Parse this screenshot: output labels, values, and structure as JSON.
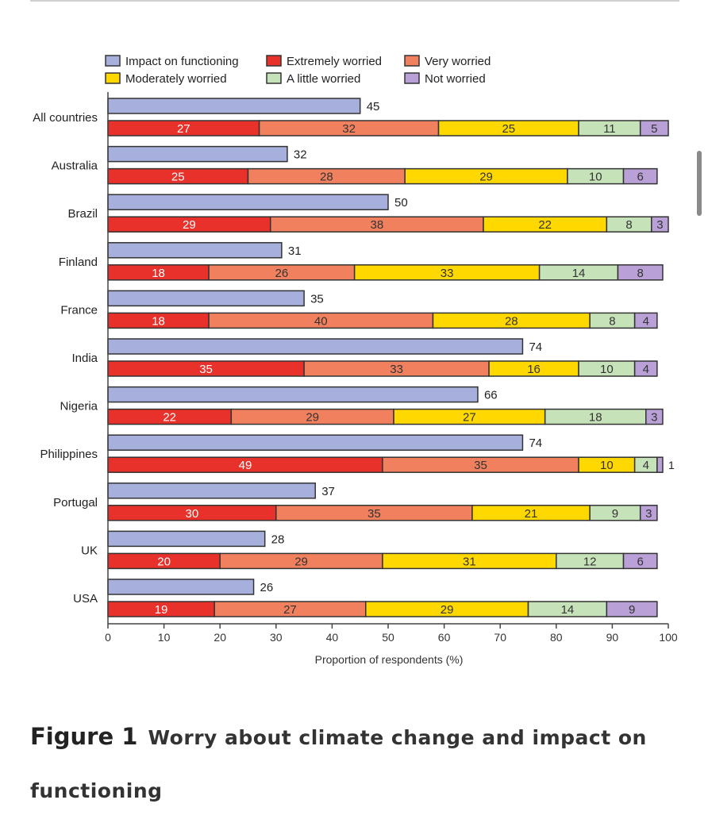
{
  "figure": {
    "label": "Figure 1",
    "title": "Worry about climate change and impact on functioning"
  },
  "chart_data": {
    "type": "bar",
    "orientation": "horizontal",
    "stacked_worry_series": true,
    "title": "",
    "xlabel": "Proportion of respondents (%)",
    "ylabel": "",
    "xlim": [
      0,
      100
    ],
    "xticks": [
      0,
      10,
      20,
      30,
      40,
      50,
      60,
      70,
      80,
      90,
      100
    ],
    "legend_position": "top",
    "categories": [
      "All countries",
      "Australia",
      "Brazil",
      "Finland",
      "France",
      "India",
      "Nigeria",
      "Philippines",
      "Portugal",
      "UK",
      "USA"
    ],
    "impact_series": {
      "name": "Impact on functioning",
      "color": "#a7b0dc",
      "values": [
        45,
        32,
        50,
        31,
        35,
        74,
        66,
        74,
        37,
        28,
        26
      ]
    },
    "series": [
      {
        "name": "Extremely worried",
        "color": "#e8312a",
        "values": [
          27,
          25,
          29,
          18,
          18,
          35,
          22,
          49,
          30,
          20,
          19
        ]
      },
      {
        "name": "Very worried",
        "color": "#f0805e",
        "values": [
          32,
          28,
          38,
          26,
          40,
          33,
          29,
          35,
          35,
          29,
          27
        ]
      },
      {
        "name": "Moderately worried",
        "color": "#ffd800",
        "values": [
          25,
          29,
          22,
          33,
          28,
          16,
          27,
          10,
          21,
          31,
          29
        ]
      },
      {
        "name": "A little worried",
        "color": "#c6e2b8",
        "values": [
          11,
          10,
          8,
          14,
          8,
          10,
          18,
          4,
          9,
          12,
          14
        ]
      },
      {
        "name": "Not worried",
        "color": "#b9a0d6",
        "values": [
          5,
          6,
          3,
          8,
          4,
          4,
          3,
          1,
          3,
          6,
          9
        ]
      }
    ]
  }
}
